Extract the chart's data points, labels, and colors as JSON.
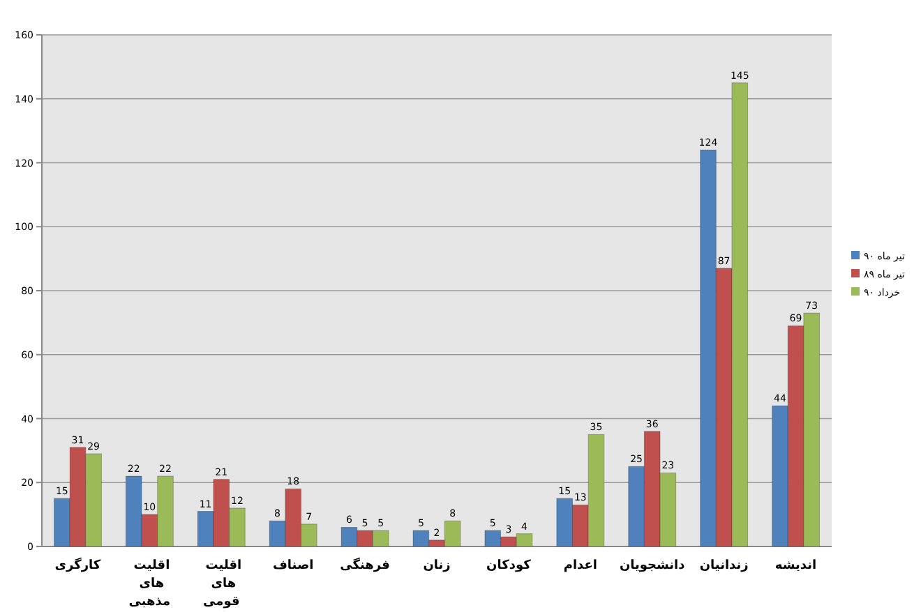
{
  "chart_data": {
    "type": "bar",
    "categories": [
      "کارگری",
      "اقلیت های مذهبی",
      "اقلیت های قومی",
      "اصناف",
      "فرهنگی",
      "زنان",
      "کودکان",
      "اعدام",
      "دانشجویان",
      "زندانیان",
      "اندیشه"
    ],
    "series": [
      {
        "name": "تیر ماه ۹۰",
        "color": "#4f81bd",
        "values": [
          15,
          22,
          11,
          8,
          6,
          5,
          5,
          15,
          25,
          124,
          44
        ]
      },
      {
        "name": "تیر ماه ۸۹",
        "color": "#c0504d",
        "values": [
          31,
          10,
          21,
          18,
          5,
          2,
          3,
          13,
          36,
          87,
          69
        ]
      },
      {
        "name": "خرداد ۹۰",
        "color": "#9bbb59",
        "values": [
          29,
          22,
          12,
          7,
          5,
          8,
          4,
          35,
          23,
          145,
          73
        ]
      }
    ],
    "ylim": [
      0,
      160
    ],
    "yticks": [
      0,
      20,
      40,
      60,
      80,
      100,
      120,
      140,
      160
    ],
    "grid": "y",
    "legend": "right",
    "data_labels": true
  }
}
